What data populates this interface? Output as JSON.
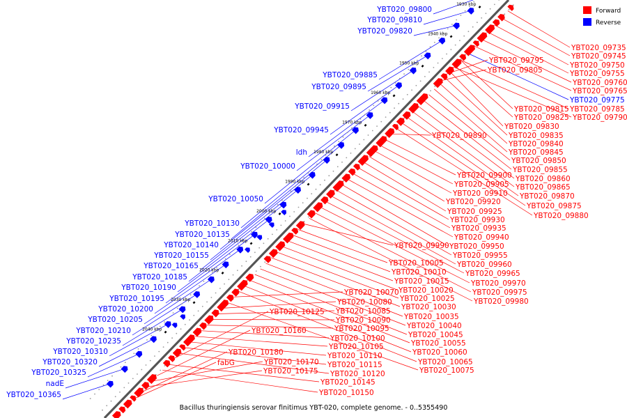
{
  "caption": "Bacillus thuringiensis serovar finitimus YBT-020, complete genome. - 0..5355490",
  "legend": [
    {
      "label": "Forward",
      "color": "#ff0000"
    },
    {
      "label": "Reverse",
      "color": "#0000ff"
    }
  ],
  "colors": {
    "forward": "#ff0000",
    "reverse": "#0000ff",
    "backbone": "#555555",
    "tick": "#000000"
  },
  "ticks": [
    "1930 kbp",
    "1940 kbp",
    "1950 kbp",
    "1960 kbp",
    "1970 kbp",
    "1980 kbp",
    "1990 kbp",
    "2000 kbp",
    "2010 kbp",
    "2020 kbp",
    "2030 kbp",
    "2040 kbp"
  ],
  "reverse_labels": [
    "YBT020_09800",
    "YBT020_09810",
    "YBT020_09820",
    "YBT020_09885",
    "YBT020_09895",
    "YBT020_09915",
    "YBT020_09945",
    "ldh",
    "YBT020_10000",
    "YBT020_10050",
    "YBT020_10130",
    "YBT020_10135",
    "YBT020_10140",
    "YBT020_10155",
    "YBT020_10165",
    "YBT020_10185",
    "YBT020_10190",
    "YBT020_10195",
    "YBT020_10200",
    "YBT020_10205",
    "YBT020_10210",
    "YBT020_10235",
    "YBT020_10310",
    "YBT020_10320",
    "YBT020_10325",
    "nadE",
    "YBT020_10365"
  ],
  "right_labels": [
    {
      "text": "YBT020_09735",
      "strand": "forward"
    },
    {
      "text": "YBT020_09745",
      "strand": "forward"
    },
    {
      "text": "YBT020_09750",
      "strand": "forward"
    },
    {
      "text": "YBT020_09755",
      "strand": "forward"
    },
    {
      "text": "YBT020_09760",
      "strand": "forward"
    },
    {
      "text": "YBT020_09765",
      "strand": "forward"
    },
    {
      "text": "YBT020_09775",
      "strand": "reverse"
    },
    {
      "text": "YBT020_09785",
      "strand": "forward"
    },
    {
      "text": "YBT020_09790",
      "strand": "forward"
    },
    {
      "text": "YBT020_09795",
      "strand": "forward"
    },
    {
      "text": "YBT020_09805",
      "strand": "forward"
    }
  ],
  "forward_labels": [
    "YBT020_09815",
    "YBT020_09825",
    "YBT020_09830",
    "YBT020_09835",
    "YBT020_09840",
    "YBT020_09845",
    "YBT020_09850",
    "YBT020_09855",
    "YBT020_09860",
    "YBT020_09865",
    "YBT020_09870",
    "YBT020_09875",
    "YBT020_09880",
    "YBT020_09890",
    "YBT020_09900",
    "YBT020_09905",
    "YBT020_09910",
    "YBT020_09920",
    "YBT020_09925",
    "YBT020_09930",
    "YBT020_09935",
    "YBT020_09940",
    "YBT020_09950",
    "YBT020_09955",
    "YBT020_09960",
    "YBT020_09965",
    "YBT020_09970",
    "YBT020_09975",
    "YBT020_09980",
    "YBT020_09990",
    "YBT020_10005",
    "YBT020_10010",
    "YBT020_10015",
    "YBT020_10020",
    "YBT020_10025",
    "YBT020_10030",
    "YBT020_10035",
    "YBT020_10040",
    "YBT020_10045",
    "YBT020_10055",
    "YBT020_10060",
    "YBT020_10065",
    "YBT020_10070",
    "YBT020_10075",
    "YBT020_10080",
    "YBT020_10085",
    "YBT020_10090",
    "YBT020_10095",
    "YBT020_10100",
    "YBT020_10105",
    "YBT020_10110",
    "YBT020_10115",
    "YBT020_10120",
    "YBT020_10125",
    "YBT020_10145",
    "YBT020_10150",
    "YBT020_10160",
    "YBT020_10170",
    "YBT020_10175",
    "YBT020_10180",
    "fabG"
  ]
}
